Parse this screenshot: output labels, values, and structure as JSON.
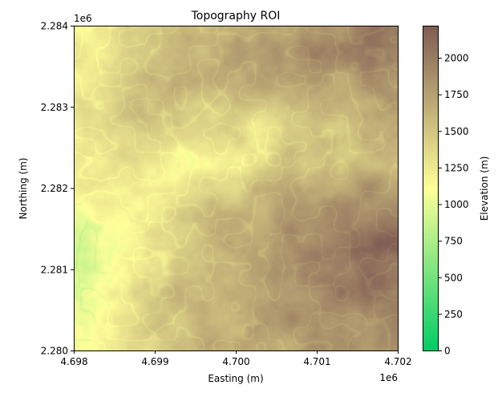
{
  "chart_data": {
    "type": "heatmap",
    "title": "Topography ROI",
    "xlabel": "Easting (m)",
    "ylabel": "Northing (m)",
    "x_offset_label": "1e6",
    "y_offset_label": "1e6",
    "xlim": [
      4.698,
      4.702
    ],
    "ylim": [
      2.28,
      2.284
    ],
    "xticks": [
      "4.698",
      "4.699",
      "4.700",
      "4.701",
      "4.702"
    ],
    "yticks": [
      "2.280",
      "2.281",
      "2.282",
      "2.283",
      "2.284"
    ],
    "grid": false,
    "colormap": "terrain (green-yellow-brown section)",
    "colormap_stops": [
      "#00cc66",
      "#ffff99",
      "#805c54"
    ],
    "colorbar": {
      "label": "Elevation (m)",
      "range": [
        0,
        2220
      ],
      "ticks": [
        "0",
        "250",
        "500",
        "750",
        "1000",
        "1250",
        "1500",
        "1750",
        "2000"
      ]
    },
    "grid_x_centers_1e6": [
      4.69825,
      4.69875,
      4.69925,
      4.69975,
      4.70025,
      4.70075,
      4.70125,
      4.70175
    ],
    "grid_y_centers_1e6": [
      2.28375,
      2.28325,
      2.28275,
      2.28225,
      2.28175,
      2.28125,
      2.28075,
      2.28025
    ],
    "elevation_grid_approx": [
      [
        1250,
        1350,
        1500,
        1600,
        1700,
        1800,
        1900,
        2050
      ],
      [
        1300,
        1500,
        1650,
        1600,
        1650,
        1700,
        1750,
        1800
      ],
      [
        1350,
        1500,
        1500,
        1350,
        1300,
        1400,
        1500,
        1600
      ],
      [
        1250,
        1300,
        1200,
        1250,
        1400,
        1500,
        1600,
        1650
      ],
      [
        1100,
        1150,
        1300,
        1500,
        1650,
        1750,
        1850,
        1900
      ],
      [
        950,
        1200,
        1400,
        1600,
        1750,
        1900,
        2050,
        2150
      ],
      [
        1050,
        1300,
        1500,
        1650,
        1800,
        1900,
        2000,
        2000
      ],
      [
        1150,
        1350,
        1500,
        1650,
        1750,
        1800,
        1850,
        1850
      ]
    ]
  }
}
